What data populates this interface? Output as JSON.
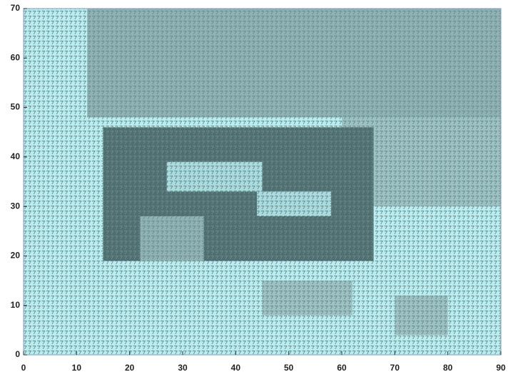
{
  "chart_data": {
    "type": "grid",
    "xlim": [
      0,
      90
    ],
    "ylim": [
      0,
      70
    ],
    "xticks": [
      0,
      10,
      20,
      30,
      40,
      50,
      60,
      70,
      80,
      90
    ],
    "yticks": [
      0,
      10,
      20,
      30,
      40,
      50,
      60,
      70
    ],
    "background": "#b9eef0",
    "regions": [
      {
        "x": [
          12,
          90
        ],
        "y": [
          48,
          70
        ],
        "color": "#8fb3b5"
      },
      {
        "x": [
          60,
          90
        ],
        "y": [
          30,
          48
        ],
        "color": "#9cc2c4"
      },
      {
        "x": [
          15,
          66
        ],
        "y": [
          19,
          46
        ],
        "color": "#4f6f70"
      },
      {
        "x": [
          27,
          45
        ],
        "y": [
          33,
          39
        ],
        "color": "#a9dcdf"
      },
      {
        "x": [
          44,
          58
        ],
        "y": [
          28,
          33
        ],
        "color": "#a9dcdf"
      },
      {
        "x": [
          22,
          34
        ],
        "y": [
          19,
          28
        ],
        "color": "#8fb3b5"
      },
      {
        "x": [
          45,
          62
        ],
        "y": [
          8,
          15
        ],
        "color": "#9cc2c4"
      },
      {
        "x": [
          70,
          80
        ],
        "y": [
          4,
          12
        ],
        "color": "#9cc2c4"
      }
    ]
  }
}
